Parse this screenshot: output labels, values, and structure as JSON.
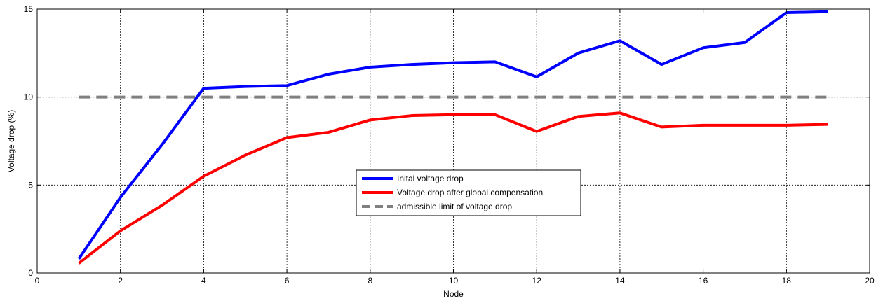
{
  "chart_data": {
    "type": "line",
    "title": "",
    "xlabel": "Node",
    "ylabel": "Voltage drop (%)",
    "xlim": [
      0,
      20
    ],
    "ylim": [
      0,
      15
    ],
    "xticks": [
      0,
      2,
      4,
      6,
      8,
      10,
      12,
      14,
      16,
      18,
      20
    ],
    "yticks": [
      0,
      5,
      10,
      15
    ],
    "grid": true,
    "legend_position": "center",
    "series": [
      {
        "name": "Inital voltage drop",
        "color": "#0000ff",
        "style": "solid",
        "x": [
          1,
          2,
          3,
          4,
          5,
          6,
          7,
          8,
          9,
          10,
          11,
          12,
          13,
          14,
          15,
          16,
          17,
          18,
          19
        ],
        "y": [
          0.8,
          4.3,
          7.3,
          10.5,
          10.6,
          10.65,
          11.3,
          11.7,
          11.85,
          11.95,
          12.0,
          11.15,
          12.5,
          13.2,
          11.85,
          12.8,
          13.1,
          14.8,
          14.85
        ]
      },
      {
        "name": "Voltage drop after global compensation",
        "color": "#ff0000",
        "style": "solid",
        "x": [
          1,
          2,
          3,
          4,
          5,
          6,
          7,
          8,
          9,
          10,
          11,
          12,
          13,
          14,
          15,
          16,
          17,
          18,
          19
        ],
        "y": [
          0.55,
          2.4,
          3.85,
          5.5,
          6.7,
          7.7,
          8.0,
          8.7,
          8.95,
          9.0,
          9.0,
          8.05,
          8.9,
          9.1,
          8.3,
          8.4,
          8.4,
          8.4,
          8.45
        ]
      },
      {
        "name": "admissible limit of voltage drop",
        "color": "#808080",
        "style": "dashed",
        "x": [
          1,
          19
        ],
        "y": [
          10,
          10
        ]
      }
    ]
  }
}
